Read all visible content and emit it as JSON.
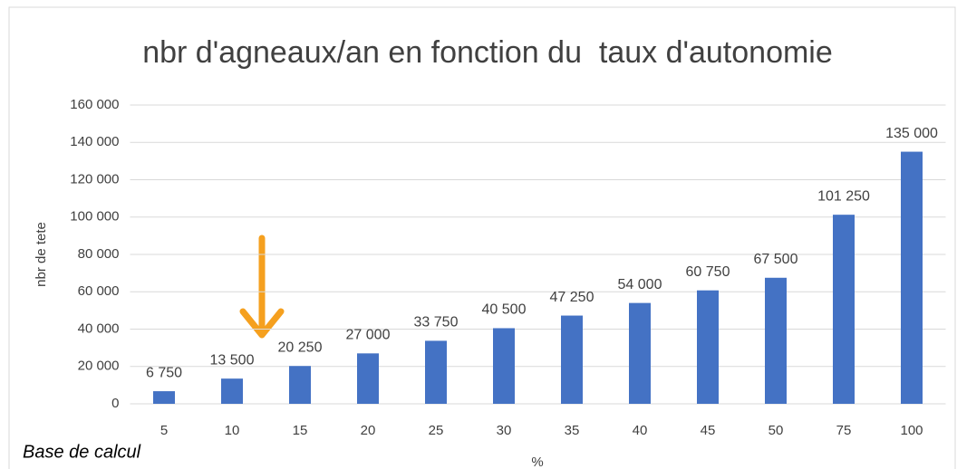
{
  "chart_data": {
    "type": "bar",
    "title": "nbr d'agneaux/an en fonction du  taux d'autonomie",
    "y_label": "nbr de tete",
    "x_label": "%",
    "annotation": "Base de calcul",
    "categories": [
      "5",
      "10",
      "15",
      "20",
      "25",
      "30",
      "35",
      "40",
      "45",
      "50",
      "75",
      "100"
    ],
    "values": [
      6750,
      13500,
      20250,
      27000,
      33750,
      40500,
      47250,
      54000,
      60750,
      67500,
      101250,
      135000
    ],
    "value_labels": [
      "6 750",
      "13 500",
      "20 250",
      "27 000",
      "33 750",
      "40 500",
      "47 250",
      "54 000",
      "60 750",
      "67 500",
      "101 250",
      "135 000"
    ],
    "color": "#4472c4",
    "ylim": [
      0,
      160000
    ],
    "yticks": [
      0,
      {
        "value": 20000,
        "label": "20 000"
      },
      {
        "value": 40000,
        "label": "40 000"
      },
      {
        "value": 60000,
        "label": "60 000"
      },
      {
        "value": 80000,
        "label": "80 000"
      },
      {
        "value": 100000,
        "label": "100 000"
      },
      {
        "value": 120000,
        "label": "120 000"
      },
      {
        "value": 140000,
        "label": "140 000"
      },
      {
        "value": 160000,
        "label": "160 000"
      }
    ],
    "grid": true
  }
}
